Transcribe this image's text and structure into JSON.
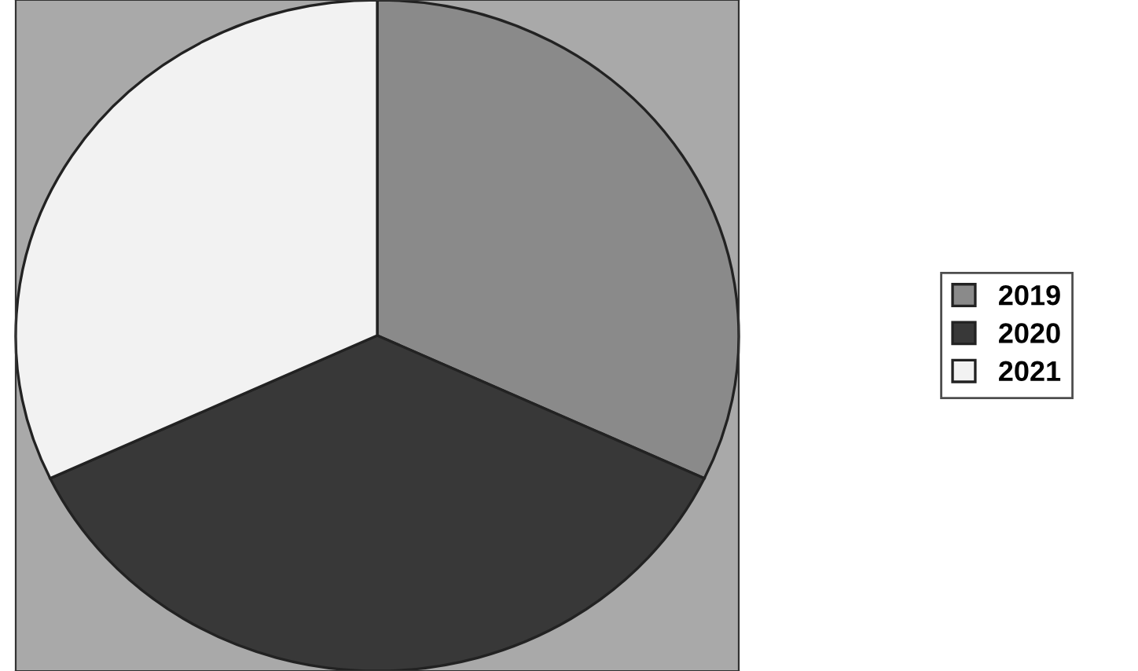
{
  "chart_data": {
    "type": "pie",
    "categories": [
      "2019",
      "2020",
      "2021"
    ],
    "values": [
      32,
      36,
      32
    ],
    "colors": [
      "#8a8a8a",
      "#383838",
      "#f2f2f2"
    ],
    "legend": "right"
  }
}
